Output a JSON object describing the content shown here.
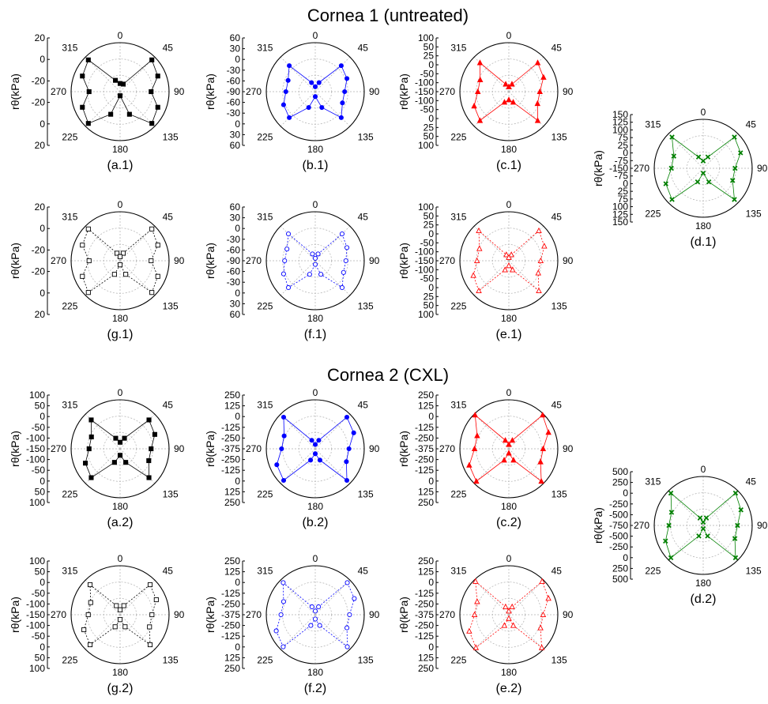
{
  "headings": [
    "Cornea 1 (untreated)",
    "Cornea 2 (CXL)"
  ],
  "angle_labels": [
    "0",
    "45",
    "90",
    "135",
    "180",
    "225",
    "270",
    "315"
  ],
  "chart_data": [
    {
      "label": "(a.1)",
      "type": "scatter",
      "coordinate_system": "polar",
      "color": "#000000",
      "marker": "filled-square",
      "line_style": "solid",
      "ylabel": "rθ(kPa)",
      "r_axis_ticks": [
        "20",
        "0",
        "-20",
        "-20",
        "0",
        "20"
      ],
      "r_range": [
        -30,
        30
      ],
      "theta": [
        22.5,
        45,
        67.5,
        90,
        112.5,
        135,
        157.5,
        180,
        202.5,
        225,
        247.5,
        270,
        292.5,
        315,
        337.5,
        360
      ],
      "values": [
        -20,
        25,
        20,
        8,
        20,
        25,
        0,
        -25,
        0,
        25,
        20,
        8,
        20,
        25,
        -15,
        -20
      ]
    },
    {
      "label": "(b.1)",
      "type": "scatter",
      "coordinate_system": "polar",
      "color": "#0000ff",
      "marker": "filled-circle",
      "line_style": "solid",
      "ylabel": "rθ(kPa)",
      "r_axis_ticks": [
        "60",
        "30",
        "0",
        "-30",
        "-60",
        "-90",
        "-60",
        "-30",
        "0",
        "30",
        "60"
      ],
      "r_range": [
        -100,
        100
      ],
      "theta": [
        22.5,
        45,
        67.5,
        90,
        112.5,
        135,
        157.5,
        180,
        202.5,
        225,
        247.5,
        270,
        292.5,
        315,
        337.5,
        360
      ],
      "values": [
        -60,
        50,
        40,
        20,
        20,
        50,
        -30,
        -80,
        -30,
        50,
        40,
        20,
        20,
        50,
        -60,
        -80
      ]
    },
    {
      "label": "(c.1)",
      "type": "scatter",
      "coordinate_system": "polar",
      "color": "#ff0000",
      "marker": "filled-triangle",
      "line_style": "solid",
      "ylabel": "rθ(kPa)",
      "r_axis_ticks": [
        "100",
        "50",
        "25",
        "0",
        "-50",
        "-100",
        "-150",
        "-100",
        "-50",
        "0",
        "25",
        "50",
        "100"
      ],
      "r_range": [
        -150,
        150
      ],
      "theta": [
        22.5,
        45,
        67.5,
        90,
        112.5,
        135,
        157.5,
        180,
        202.5,
        225,
        247.5,
        270,
        292.5,
        315,
        337.5,
        360
      ],
      "values": [
        -100,
        100,
        80,
        40,
        40,
        100,
        -80,
        -100,
        -80,
        100,
        80,
        40,
        40,
        100,
        -100,
        -120
      ]
    },
    {
      "label": "(d.1)",
      "type": "scatter",
      "coordinate_system": "polar",
      "color": "#008000",
      "marker": "x",
      "line_style": "solid",
      "ylabel": "rθ(kPa)",
      "r_axis_ticks": [
        "150",
        "125",
        "100",
        "75",
        "25",
        "0",
        "-75",
        "-150",
        "-75",
        "0",
        "25",
        "75",
        "100",
        "125",
        "150"
      ],
      "r_range": [
        -200,
        200
      ],
      "theta": [
        22.5,
        45,
        67.5,
        90,
        112.5,
        135,
        157.5,
        180,
        202.5,
        225,
        247.5,
        270,
        292.5,
        315,
        337.5,
        360
      ],
      "values": [
        -100,
        160,
        130,
        60,
        60,
        160,
        -80,
        -160,
        -80,
        160,
        130,
        60,
        60,
        160,
        -100,
        -140
      ]
    },
    {
      "label": "(g.1)",
      "type": "scatter",
      "coordinate_system": "polar",
      "color": "#000000",
      "marker": "open-square",
      "line_style": "dotted",
      "ylabel": "rθ(kPa)",
      "r_axis_ticks": [
        "20",
        "0",
        "-20",
        "-20",
        "0",
        "20"
      ],
      "r_range": [
        -30,
        30
      ],
      "theta": [
        22.5,
        45,
        67.5,
        90,
        112.5,
        135,
        157.5,
        180,
        202.5,
        225,
        247.5,
        270,
        292.5,
        315,
        337.5,
        360
      ],
      "values": [
        -20,
        25,
        20,
        8,
        20,
        25,
        -12,
        -25,
        -12,
        25,
        20,
        8,
        20,
        25,
        -20,
        -25
      ]
    },
    {
      "label": "(f.1)",
      "type": "scatter",
      "coordinate_system": "polar",
      "color": "#0000ff",
      "marker": "open-circle",
      "line_style": "dotted",
      "ylabel": "rθ(kPa)",
      "r_axis_ticks": [
        "60",
        "30",
        "0",
        "-30",
        "-60",
        "-90",
        "-60",
        "-30",
        "0",
        "30",
        "60"
      ],
      "r_range": [
        -100,
        100
      ],
      "theta": [
        22.5,
        45,
        67.5,
        90,
        112.5,
        135,
        157.5,
        180,
        202.5,
        225,
        247.5,
        270,
        292.5,
        315,
        337.5,
        360
      ],
      "values": [
        -70,
        55,
        40,
        25,
        25,
        55,
        -40,
        -85,
        -40,
        55,
        40,
        25,
        25,
        55,
        -70,
        -90
      ]
    },
    {
      "label": "(e.1)",
      "type": "scatter",
      "coordinate_system": "polar",
      "color": "#ff0000",
      "marker": "open-triangle",
      "line_style": "dotted",
      "ylabel": "rθ(kPa)",
      "r_axis_ticks": [
        "100",
        "50",
        "25",
        "0",
        "-50",
        "-100",
        "-150",
        "-100",
        "-50",
        "0",
        "25",
        "50",
        "100"
      ],
      "r_range": [
        -150,
        150
      ],
      "theta": [
        22.5,
        45,
        67.5,
        90,
        112.5,
        135,
        157.5,
        180,
        202.5,
        225,
        247.5,
        270,
        292.5,
        315,
        337.5,
        360
      ],
      "values": [
        -110,
        110,
        85,
        45,
        45,
        110,
        -90,
        -120,
        -90,
        110,
        85,
        45,
        45,
        110,
        -110,
        -130
      ]
    },
    {
      "label": "(a.2)",
      "type": "scatter",
      "coordinate_system": "polar",
      "color": "#000000",
      "marker": "filled-square",
      "line_style": "solid",
      "ylabel": "rθ(kPa)",
      "r_axis_ticks": [
        "100",
        "50",
        "0",
        "-50",
        "-100",
        "-150",
        "-100",
        "-50",
        "0",
        "50",
        "100"
      ],
      "r_range": [
        -150,
        150
      ],
      "theta": [
        22.5,
        45,
        67.5,
        90,
        112.5,
        135,
        157.5,
        180,
        202.5,
        225,
        247.5,
        270,
        292.5,
        315,
        337.5,
        360
      ],
      "values": [
        -80,
        100,
        80,
        40,
        40,
        100,
        -60,
        -110,
        -60,
        100,
        80,
        40,
        40,
        100,
        -80,
        -110
      ]
    },
    {
      "label": "(b.2)",
      "type": "scatter",
      "coordinate_system": "polar",
      "color": "#0000ff",
      "marker": "filled-circle",
      "line_style": "solid",
      "ylabel": "rθ(kPa)",
      "r_axis_ticks": [
        "250",
        "125",
        "0",
        "-125",
        "-250",
        "-375",
        "-250",
        "-125",
        "0",
        "125",
        "250"
      ],
      "r_range": [
        -400,
        400
      ],
      "theta": [
        22.5,
        45,
        67.5,
        90,
        112.5,
        135,
        157.5,
        180,
        202.5,
        225,
        247.5,
        270,
        292.5,
        315,
        337.5,
        360
      ],
      "values": [
        -250,
        330,
        280,
        150,
        150,
        330,
        -200,
        -320,
        -200,
        330,
        280,
        150,
        150,
        330,
        -250,
        -330
      ]
    },
    {
      "label": "(c.2)",
      "type": "scatter",
      "coordinate_system": "polar",
      "color": "#ff0000",
      "marker": "filled-triangle",
      "line_style": "solid",
      "ylabel": "rθ(kPa)",
      "r_axis_ticks": [
        "250",
        "125",
        "0",
        "-125",
        "-250",
        "-375",
        "-250",
        "-125",
        "0",
        "125",
        "250"
      ],
      "r_range": [
        -400,
        400
      ],
      "theta": [
        22.5,
        45,
        67.5,
        90,
        112.5,
        135,
        157.5,
        180,
        202.5,
        225,
        247.5,
        270,
        292.5,
        315,
        337.5,
        360
      ],
      "values": [
        -250,
        380,
        300,
        160,
        160,
        350,
        -200,
        -330,
        -200,
        350,
        300,
        160,
        160,
        380,
        -250,
        -330
      ]
    },
    {
      "label": "(d.2)",
      "type": "scatter",
      "coordinate_system": "polar",
      "color": "#008000",
      "marker": "x",
      "line_style": "solid",
      "ylabel": "rθ(kPa)",
      "r_axis_ticks": [
        "500",
        "250",
        "0",
        "-250",
        "-500",
        "-750",
        "-500",
        "-250",
        "0",
        "250",
        "500"
      ],
      "r_range": [
        -750,
        750
      ],
      "theta": [
        22.5,
        45,
        67.5,
        90,
        112.5,
        135,
        157.5,
        180,
        202.5,
        225,
        247.5,
        270,
        292.5,
        315,
        337.5,
        360
      ],
      "values": [
        -500,
        650,
        500,
        300,
        300,
        650,
        -400,
        -650,
        -400,
        650,
        500,
        300,
        300,
        650,
        -500,
        -650
      ]
    },
    {
      "label": "(g.2)",
      "type": "scatter",
      "coordinate_system": "polar",
      "color": "#000000",
      "marker": "open-square",
      "line_style": "dotted",
      "ylabel": "rθ(kPa)",
      "r_axis_ticks": [
        "100",
        "50",
        "0",
        "-50",
        "-100",
        "-150",
        "-100",
        "-50",
        "0",
        "50",
        "100"
      ],
      "r_range": [
        -150,
        150
      ],
      "theta": [
        22.5,
        45,
        67.5,
        90,
        112.5,
        135,
        157.5,
        180,
        202.5,
        225,
        247.5,
        270,
        292.5,
        315,
        337.5,
        360
      ],
      "values": [
        -90,
        110,
        90,
        45,
        45,
        110,
        -70,
        -120,
        -70,
        110,
        90,
        45,
        45,
        110,
        -90,
        -120
      ]
    },
    {
      "label": "(f.2)",
      "type": "scatter",
      "coordinate_system": "polar",
      "color": "#0000ff",
      "marker": "open-circle",
      "line_style": "dotted",
      "ylabel": "rθ(kPa)",
      "r_axis_ticks": [
        "250",
        "125",
        "0",
        "-125",
        "-250",
        "-375",
        "-250",
        "-125",
        "0",
        "125",
        "250"
      ],
      "r_range": [
        -400,
        400
      ],
      "theta": [
        22.5,
        45,
        67.5,
        90,
        112.5,
        135,
        157.5,
        180,
        202.5,
        225,
        247.5,
        270,
        292.5,
        315,
        337.5,
        360
      ],
      "values": [
        -260,
        340,
        290,
        160,
        160,
        340,
        -210,
        -330,
        -210,
        340,
        290,
        160,
        160,
        340,
        -260,
        -340
      ]
    },
    {
      "label": "(e.2)",
      "type": "scatter",
      "coordinate_system": "polar",
      "color": "#ff0000",
      "marker": "open-triangle",
      "line_style": "dotted",
      "ylabel": "rθ(kPa)",
      "r_axis_ticks": [
        "250",
        "125",
        "0",
        "-125",
        "-250",
        "-375",
        "-250",
        "-125",
        "0",
        "125",
        "250"
      ],
      "r_range": [
        -400,
        400
      ],
      "theta": [
        22.5,
        45,
        67.5,
        90,
        112.5,
        135,
        157.5,
        180,
        202.5,
        225,
        247.5,
        270,
        292.5,
        315,
        337.5,
        360
      ],
      "values": [
        -260,
        370,
        300,
        160,
        160,
        360,
        -210,
        -340,
        -210,
        360,
        300,
        160,
        160,
        370,
        -260,
        -340
      ]
    }
  ]
}
